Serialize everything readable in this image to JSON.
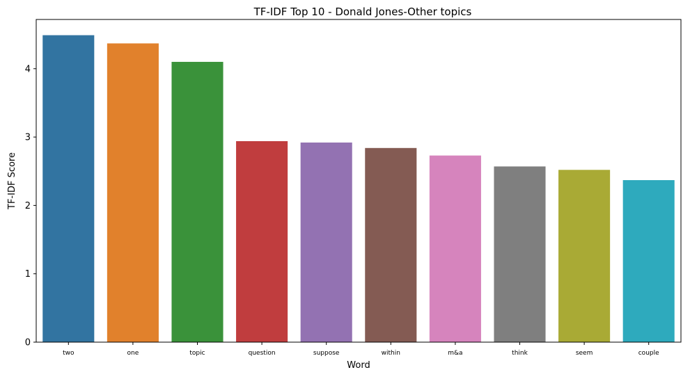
{
  "chart_data": {
    "type": "bar",
    "title": "TF-IDF Top 10 - Donald Jones-Other topics",
    "xlabel": "Word",
    "ylabel": "TF-IDF Score",
    "categories": [
      "two",
      "one",
      "topic",
      "question",
      "suppose",
      "within",
      "m&a",
      "think",
      "seem",
      "couple"
    ],
    "values": [
      4.49,
      4.37,
      4.1,
      2.94,
      2.92,
      2.84,
      2.73,
      2.57,
      2.52,
      2.37
    ],
    "colors": [
      "#3274a1",
      "#e1812c",
      "#3a923a",
      "#c03d3e",
      "#9372b2",
      "#845b53",
      "#d684bd",
      "#7f7f7f",
      "#a9aa35",
      "#2eaabd"
    ],
    "yticks": [
      0,
      1,
      2,
      3,
      4
    ],
    "ylim": [
      0,
      4.72
    ],
    "grid": false
  }
}
